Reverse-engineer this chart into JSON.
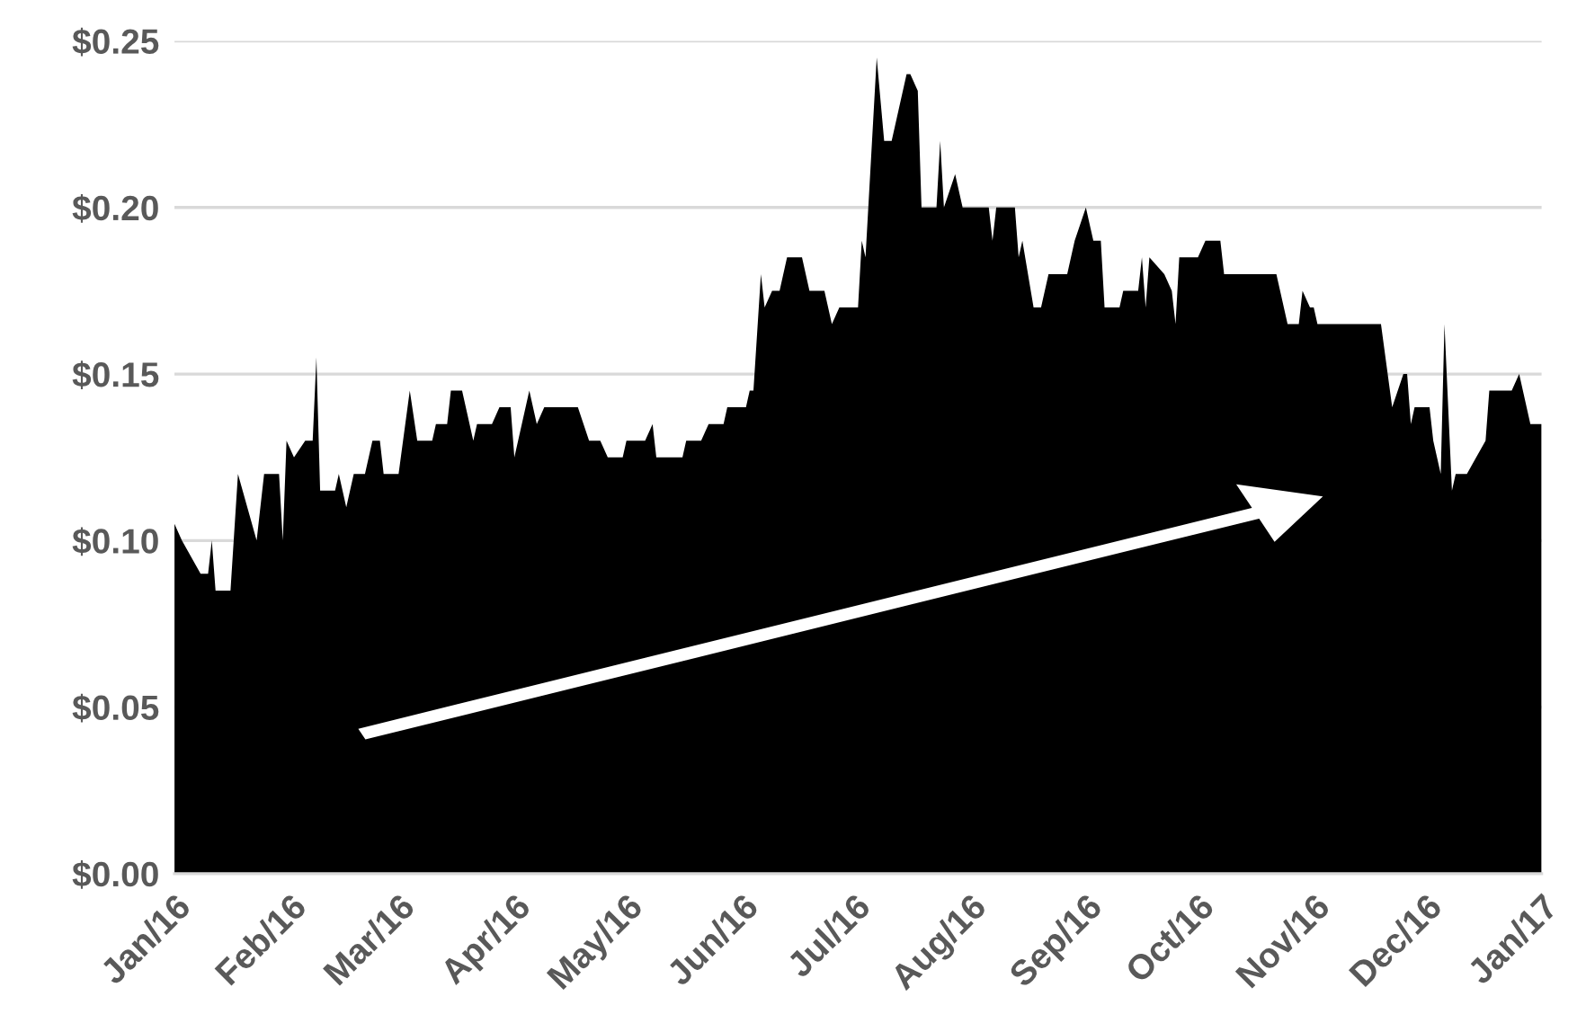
{
  "chart_data": {
    "type": "area",
    "x": [
      "2016-01-01",
      "2016-01-03",
      "2016-01-08",
      "2016-01-10",
      "2016-01-11",
      "2016-01-12",
      "2016-01-16",
      "2016-01-18",
      "2016-01-23",
      "2016-01-25",
      "2016-01-29",
      "2016-01-30",
      "2016-01-31",
      "2016-02-02",
      "2016-02-05",
      "2016-02-07",
      "2016-02-08",
      "2016-02-09",
      "2016-02-13",
      "2016-02-14",
      "2016-02-16",
      "2016-02-18",
      "2016-02-21",
      "2016-02-23",
      "2016-02-25",
      "2016-02-26",
      "2016-03-01",
      "2016-03-04",
      "2016-03-06",
      "2016-03-10",
      "2016-03-11",
      "2016-03-14",
      "2016-03-15",
      "2016-03-18",
      "2016-03-21",
      "2016-03-22",
      "2016-03-26",
      "2016-03-28",
      "2016-03-31",
      "2016-04-01",
      "2016-04-05",
      "2016-04-07",
      "2016-04-09",
      "2016-04-18",
      "2016-04-21",
      "2016-04-24",
      "2016-04-26",
      "2016-04-30",
      "2016-05-01",
      "2016-05-06",
      "2016-05-08",
      "2016-05-09",
      "2016-05-16",
      "2016-05-17",
      "2016-05-21",
      "2016-05-23",
      "2016-05-27",
      "2016-05-28",
      "2016-06-02",
      "2016-06-03",
      "2016-06-04",
      "2016-06-06",
      "2016-06-07",
      "2016-06-09",
      "2016-06-11",
      "2016-06-13",
      "2016-06-17",
      "2016-06-19",
      "2016-06-23",
      "2016-06-25",
      "2016-06-27",
      "2016-07-02",
      "2016-07-03",
      "2016-07-04",
      "2016-07-07",
      "2016-07-09",
      "2016-07-11",
      "2016-07-15",
      "2016-07-16",
      "2016-07-18",
      "2016-07-19",
      "2016-07-23",
      "2016-07-24",
      "2016-07-25",
      "2016-07-28",
      "2016-07-30",
      "2016-08-06",
      "2016-08-07",
      "2016-08-08",
      "2016-08-13",
      "2016-08-14",
      "2016-08-15",
      "2016-08-18",
      "2016-08-20",
      "2016-08-22",
      "2016-08-27",
      "2016-08-29",
      "2016-09-01",
      "2016-09-03",
      "2016-09-05",
      "2016-09-06",
      "2016-09-10",
      "2016-09-11",
      "2016-09-15",
      "2016-09-16",
      "2016-09-17",
      "2016-09-18",
      "2016-09-22",
      "2016-09-24",
      "2016-09-25",
      "2016-09-26",
      "2016-10-01",
      "2016-10-03",
      "2016-10-07",
      "2016-10-08",
      "2016-10-22",
      "2016-10-25",
      "2016-10-28",
      "2016-10-29",
      "2016-10-31",
      "2016-11-01",
      "2016-11-02",
      "2016-11-19",
      "2016-11-22",
      "2016-11-25",
      "2016-11-26",
      "2016-11-27",
      "2016-11-28",
      "2016-12-02",
      "2016-12-03",
      "2016-12-05",
      "2016-12-06",
      "2016-12-08",
      "2016-12-09",
      "2016-12-12",
      "2016-12-17",
      "2016-12-18",
      "2016-12-24",
      "2016-12-26",
      "2016-12-29",
      "2017-01-01"
    ],
    "series": [
      {
        "color": "#000000",
        "values": [
          0.105,
          0.1,
          0.09,
          0.09,
          0.1,
          0.085,
          0.085,
          0.12,
          0.1,
          0.12,
          0.12,
          0.1,
          0.13,
          0.125,
          0.13,
          0.13,
          0.155,
          0.115,
          0.115,
          0.12,
          0.11,
          0.12,
          0.12,
          0.13,
          0.13,
          0.12,
          0.12,
          0.145,
          0.13,
          0.13,
          0.135,
          0.135,
          0.145,
          0.145,
          0.13,
          0.135,
          0.135,
          0.14,
          0.14,
          0.125,
          0.145,
          0.135,
          0.14,
          0.14,
          0.13,
          0.13,
          0.125,
          0.125,
          0.13,
          0.13,
          0.135,
          0.125,
          0.125,
          0.13,
          0.13,
          0.135,
          0.135,
          0.14,
          0.14,
          0.145,
          0.145,
          0.18,
          0.17,
          0.175,
          0.175,
          0.185,
          0.185,
          0.175,
          0.175,
          0.165,
          0.17,
          0.17,
          0.19,
          0.185,
          0.245,
          0.22,
          0.22,
          0.24,
          0.24,
          0.235,
          0.2,
          0.2,
          0.22,
          0.2,
          0.21,
          0.2,
          0.2,
          0.19,
          0.2,
          0.2,
          0.185,
          0.19,
          0.17,
          0.17,
          0.18,
          0.18,
          0.19,
          0.2,
          0.19,
          0.19,
          0.17,
          0.17,
          0.175,
          0.175,
          0.185,
          0.17,
          0.185,
          0.18,
          0.175,
          0.165,
          0.185,
          0.185,
          0.19,
          0.19,
          0.18,
          0.18,
          0.165,
          0.165,
          0.175,
          0.17,
          0.17,
          0.165,
          0.165,
          0.14,
          0.15,
          0.15,
          0.135,
          0.14,
          0.14,
          0.13,
          0.12,
          0.165,
          0.115,
          0.12,
          0.12,
          0.13,
          0.145,
          0.145,
          0.15,
          0.135,
          0.135
        ]
      }
    ],
    "xlim": [
      "2016-01-01",
      "2017-01-01"
    ],
    "xticks": [
      {
        "value": "2016-01-01",
        "label": "Jan/16"
      },
      {
        "value": "2016-02-01",
        "label": "Feb/16"
      },
      {
        "value": "2016-03-01",
        "label": "Mar/16"
      },
      {
        "value": "2016-04-01",
        "label": "Apr/16"
      },
      {
        "value": "2016-05-01",
        "label": "May/16"
      },
      {
        "value": "2016-06-01",
        "label": "Jun/16"
      },
      {
        "value": "2016-07-01",
        "label": "Jul/16"
      },
      {
        "value": "2016-08-01",
        "label": "Aug/16"
      },
      {
        "value": "2016-09-01",
        "label": "Sep/16"
      },
      {
        "value": "2016-10-01",
        "label": "Oct/16"
      },
      {
        "value": "2016-11-01",
        "label": "Nov/16"
      },
      {
        "value": "2016-12-01",
        "label": "Dec/16"
      },
      {
        "value": "2017-01-01",
        "label": "Jan/17"
      }
    ],
    "ylim": [
      0,
      0.25
    ],
    "yticks": [
      {
        "value": 0,
        "label": "$0.00"
      },
      {
        "value": 0.05,
        "label": "$0.05"
      },
      {
        "value": 0.1,
        "label": "$0.10"
      },
      {
        "value": 0.15,
        "label": "$0.15"
      },
      {
        "value": 0.2,
        "label": "$0.20"
      },
      {
        "value": 0.25,
        "label": "$0.25"
      }
    ],
    "grid": "y",
    "legend": false
  }
}
